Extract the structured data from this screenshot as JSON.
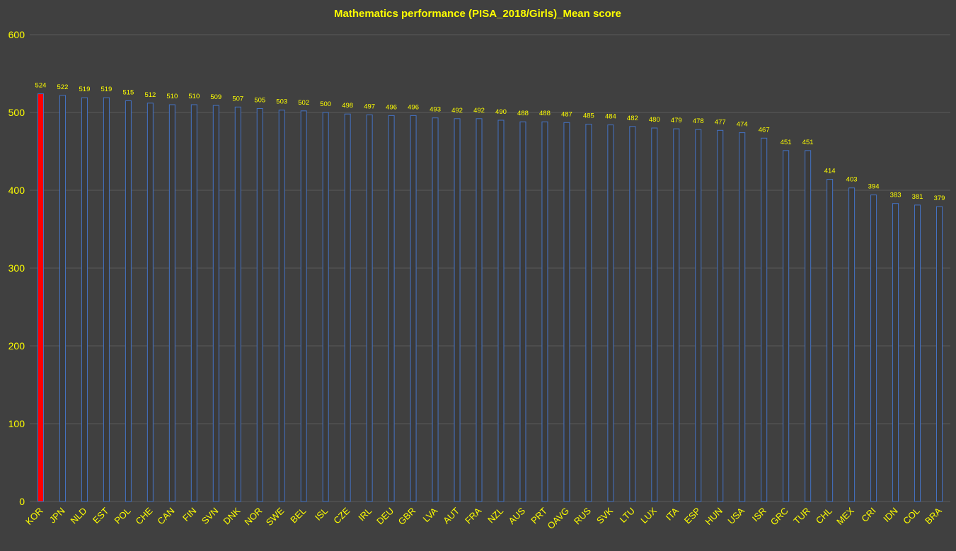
{
  "chart_data": {
    "type": "bar",
    "title": "Mathematics performance (PISA_2018/Girls)_Mean score",
    "xlabel": "",
    "ylabel": "",
    "ylim": [
      0,
      600
    ],
    "yticks": [
      0,
      100,
      200,
      300,
      400,
      500,
      600
    ],
    "grid": true,
    "legend": "none",
    "categories": [
      "KOR",
      "JPN",
      "NLD",
      "EST",
      "POL",
      "CHE",
      "CAN",
      "FIN",
      "SVN",
      "DNK",
      "NOR",
      "SWE",
      "BEL",
      "ISL",
      "CZE",
      "IRL",
      "DEU",
      "GBR",
      "LVA",
      "AUT",
      "FRA",
      "NZL",
      "AUS",
      "PRT",
      "OAVG",
      "RUS",
      "SVK",
      "LTU",
      "LUX",
      "ITA",
      "ESP",
      "HUN",
      "USA",
      "ISR",
      "GRC",
      "TUR",
      "CHL",
      "MEX",
      "CRI",
      "IDN",
      "COL",
      "BRA"
    ],
    "values": [
      524,
      522,
      519,
      519,
      515,
      512,
      510,
      510,
      509,
      507,
      505,
      503,
      502,
      500,
      498,
      497,
      496,
      496,
      493,
      492,
      492,
      490,
      488,
      488,
      487,
      485,
      484,
      482,
      480,
      479,
      478,
      477,
      474,
      467,
      451,
      451,
      414,
      403,
      394,
      383,
      381,
      379
    ],
    "highlight_category": "KOR",
    "colors": {
      "background": "#404040",
      "bar_fill": "#3a3a3a",
      "bar_stroke": "#4472c4",
      "highlight_fill": "#ff0000",
      "highlight_stroke": "#4472c4",
      "text": "#ffff00",
      "grid": "#5a5a5a"
    }
  }
}
